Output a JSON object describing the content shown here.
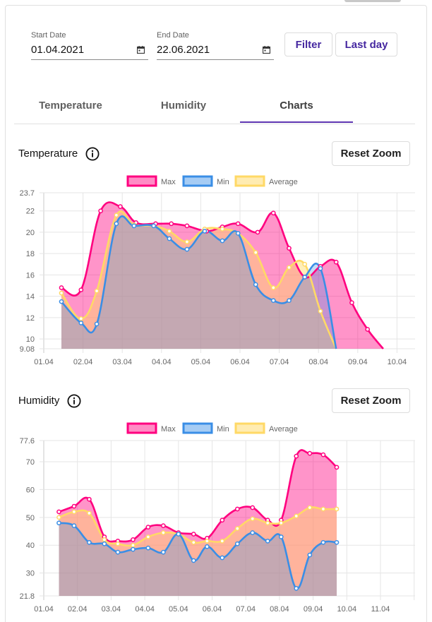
{
  "filters": {
    "start_date": {
      "label": "Start Date",
      "value": "01.04.2021"
    },
    "end_date": {
      "label": "End Date",
      "value": "22.06.2021"
    },
    "filter_label": "Filter",
    "last_day_label": "Last day"
  },
  "tabs": [
    {
      "label": "Temperature",
      "active": false
    },
    {
      "label": "Humidity",
      "active": false
    },
    {
      "label": "Charts",
      "active": true
    }
  ],
  "temperature_section": {
    "title": "Temperature",
    "reset_label": "Reset Zoom"
  },
  "humidity_section": {
    "title": "Humidity",
    "reset_label": "Reset Zoom"
  },
  "colors": {
    "max": "#ff007f",
    "min": "#3a8ee6",
    "average": "#ffd966",
    "accent": "#4527a0",
    "tab_indicator": "#5e35b1"
  },
  "chart_data": [
    {
      "type": "area",
      "x_tick_labels": [
        "01.04",
        "02.04",
        "03.04",
        "04.04",
        "05.04",
        "06.04",
        "07.04",
        "08.04",
        "09.04",
        "10.04"
      ],
      "y_tick_labels": [
        "23.7",
        "22",
        "20",
        "18",
        "16",
        "14",
        "12",
        "10",
        "9.08"
      ],
      "ylim": [
        9.08,
        23.7
      ],
      "legend_position": "top",
      "series": [
        {
          "name": "Max",
          "color": "#ff007f",
          "x": [
            0.45,
            0.95,
            1.45,
            1.95,
            2.35,
            2.85,
            3.25,
            3.65,
            4.15,
            4.55,
            4.95,
            5.45,
            5.85,
            6.25,
            6.65,
            7.05,
            7.45,
            7.85,
            8.25,
            8.65
          ],
          "y": [
            14.8,
            14.6,
            22.0,
            22.4,
            20.9,
            20.8,
            20.8,
            20.6,
            20.1,
            20.5,
            20.8,
            20.0,
            21.8,
            18.5,
            15.8,
            16.8,
            17.2,
            13.4,
            10.9,
            9.08
          ]
        },
        {
          "name": "Min",
          "color": "#3a8ee6",
          "x": [
            0.45,
            0.95,
            1.35,
            1.85,
            2.3,
            2.8,
            3.2,
            3.65,
            4.1,
            4.55,
            4.95,
            5.4,
            5.85,
            6.25,
            6.65,
            7.05,
            7.45
          ],
          "y": [
            13.5,
            11.5,
            11.4,
            20.8,
            20.6,
            20.6,
            19.4,
            18.4,
            20.1,
            19.2,
            19.9,
            15.1,
            13.6,
            13.6,
            15.8,
            16.6,
            9.08
          ]
        },
        {
          "name": "Average",
          "color": "#ffd966",
          "x": [
            0.45,
            0.95,
            1.35,
            1.85,
            2.3,
            2.8,
            3.2,
            3.65,
            4.1,
            4.55,
            4.95,
            5.4,
            5.85,
            6.25,
            6.65,
            7.05,
            7.45
          ],
          "y": [
            14.3,
            11.9,
            14.5,
            21.6,
            20.7,
            20.6,
            20.1,
            19.1,
            20.3,
            20.3,
            19.9,
            18.1,
            14.8,
            16.7,
            17.0,
            12.6,
            9.08
          ]
        }
      ]
    },
    {
      "type": "area",
      "x_tick_labels": [
        "01.04",
        "02.04",
        "03.04",
        "04.04",
        "05.04",
        "06.04",
        "07.04",
        "08.04",
        "09.04",
        "10.04",
        "11.04"
      ],
      "y_tick_labels": [
        "77.6",
        "70",
        "60",
        "50",
        "40",
        "30",
        "21.8"
      ],
      "ylim": [
        21.8,
        77.6
      ],
      "legend_position": "top",
      "series": [
        {
          "name": "Max",
          "color": "#ff007f",
          "x": [
            0.45,
            0.9,
            1.35,
            1.8,
            2.2,
            2.65,
            3.1,
            3.55,
            4.0,
            4.45,
            4.85,
            5.3,
            5.75,
            6.2,
            6.65,
            7.05,
            7.5,
            7.9,
            8.3,
            8.7
          ],
          "y": [
            52,
            54,
            56.5,
            43,
            41.5,
            42,
            46.5,
            47,
            44.5,
            44,
            42.5,
            49,
            53,
            53.5,
            49,
            49,
            72,
            73,
            72.5,
            68
          ]
        },
        {
          "name": "Min",
          "color": "#3a8ee6",
          "x": [
            0.45,
            0.9,
            1.35,
            1.8,
            2.2,
            2.65,
            3.1,
            3.55,
            4.0,
            4.45,
            4.85,
            5.3,
            5.75,
            6.2,
            6.65,
            7.05,
            7.5,
            7.9,
            8.3,
            8.7
          ],
          "y": [
            48,
            47,
            41,
            40.5,
            37.5,
            38.5,
            39,
            37.5,
            44,
            34.5,
            39.5,
            35.5,
            40.5,
            44.5,
            41.5,
            43,
            24.5,
            36.5,
            41,
            41
          ]
        },
        {
          "name": "Average",
          "color": "#ffd966",
          "x": [
            0.45,
            0.9,
            1.35,
            1.8,
            2.2,
            2.65,
            3.1,
            3.55,
            4.0,
            4.45,
            4.85,
            5.3,
            5.75,
            6.2,
            6.65,
            7.05,
            7.5,
            7.9,
            8.3,
            8.7
          ],
          "y": [
            50,
            52,
            51.5,
            42,
            40.5,
            40,
            43,
            44.5,
            44,
            41,
            41.5,
            41.5,
            46,
            49.5,
            48,
            48,
            50.5,
            53.5,
            53,
            53
          ]
        }
      ]
    }
  ]
}
